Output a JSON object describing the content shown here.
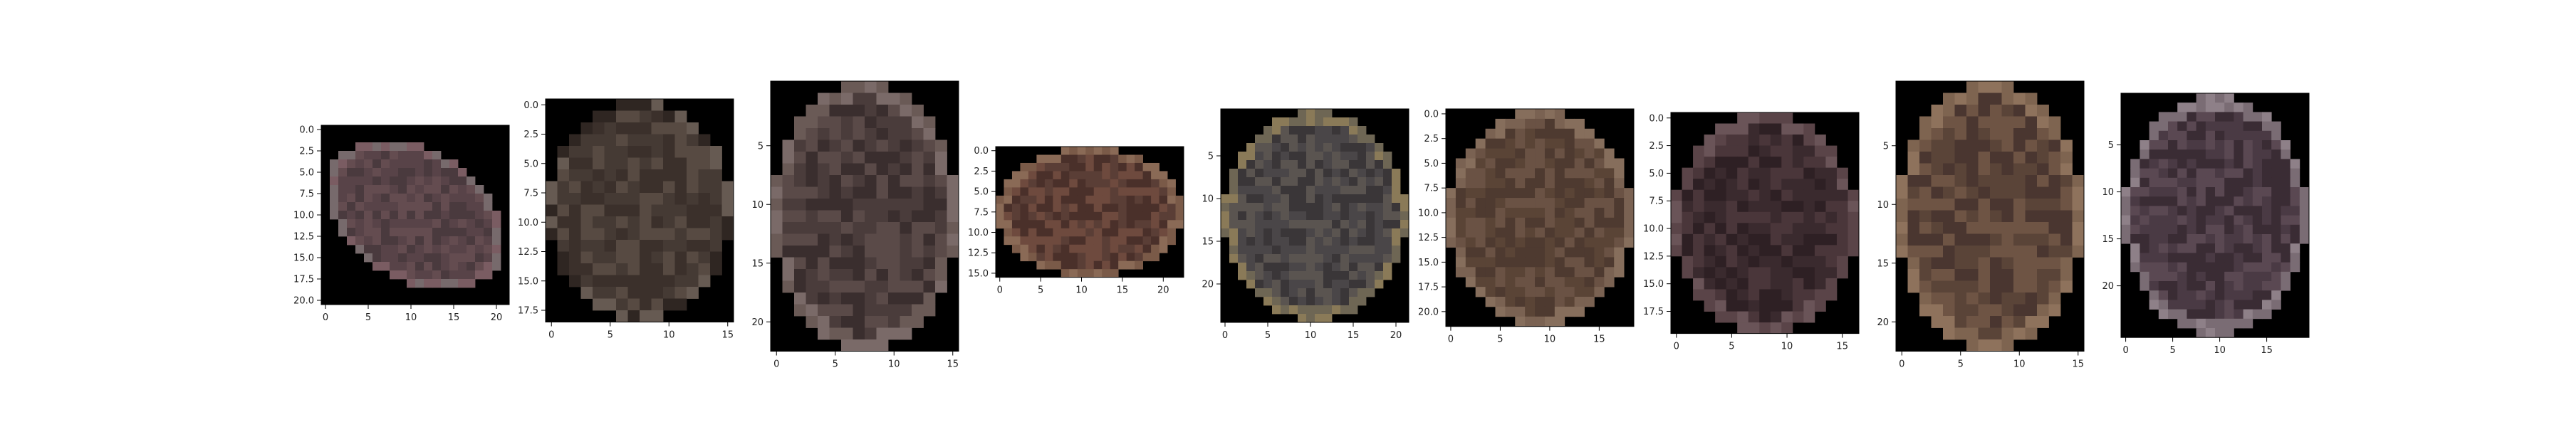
{
  "figure": {
    "background": "#ffffff",
    "axis_color": "#000000",
    "tick_label_color": "#222222",
    "pixel_background": "#000000"
  },
  "chart_data": [
    {
      "type": "heatmap",
      "title": "",
      "xlabel": "",
      "ylabel": "",
      "grid": false,
      "xlim": [
        -0.5,
        21.5
      ],
      "ylim": [
        20.5,
        -0.5
      ],
      "xticks": [
        0,
        5,
        10,
        15,
        20
      ],
      "yticks": [
        0.0,
        2.5,
        5.0,
        7.5,
        10.0,
        12.5,
        15.0,
        17.5,
        20.0
      ],
      "ytick_format": "fixed1",
      "colors": [
        "#584348",
        "#644c50",
        "#4a3a3e",
        "#776a6c",
        "#7a5c62"
      ],
      "shape": "tilted-oval"
    },
    {
      "type": "heatmap",
      "title": "",
      "xlabel": "",
      "ylabel": "",
      "grid": false,
      "xlim": [
        -0.5,
        15.5
      ],
      "ylim": [
        18.5,
        -0.5
      ],
      "xticks": [
        0,
        5,
        10,
        15
      ],
      "yticks": [
        0.0,
        2.5,
        5.0,
        7.5,
        10.0,
        12.5,
        15.0,
        17.5
      ],
      "ytick_format": "fixed1",
      "colors": [
        "#453a34",
        "#3b302b",
        "#574a42",
        "#2f2622",
        "#665a52"
      ],
      "shape": "oval"
    },
    {
      "type": "heatmap",
      "title": "",
      "xlabel": "",
      "ylabel": "",
      "grid": false,
      "xlim": [
        -0.5,
        15.5
      ],
      "ylim": [
        22.5,
        -0.5
      ],
      "xticks": [
        0,
        5,
        10,
        15
      ],
      "yticks": [
        5,
        10,
        15,
        20
      ],
      "ytick_format": "int",
      "colors": [
        "#4a3c3b",
        "#5a4a48",
        "#3a2e2e",
        "#6a5a56",
        "#7a6a68"
      ],
      "shape": "oval"
    },
    {
      "type": "heatmap",
      "title": "",
      "xlabel": "",
      "ylabel": "",
      "grid": false,
      "xlim": [
        -0.5,
        22.5
      ],
      "ylim": [
        15.5,
        -0.5
      ],
      "xticks": [
        0,
        5,
        10,
        15,
        20
      ],
      "yticks": [
        0.0,
        2.5,
        5.0,
        7.5,
        10.0,
        12.5,
        15.0
      ],
      "ytick_format": "fixed1",
      "colors": [
        "#5a3e36",
        "#6e4a3e",
        "#4a302a",
        "#7a5a48",
        "#8a6a56"
      ],
      "shape": "oval"
    },
    {
      "type": "heatmap",
      "title": "",
      "xlabel": "",
      "ylabel": "",
      "grid": false,
      "xlim": [
        -0.5,
        21.5
      ],
      "ylim": [
        24.5,
        -0.5
      ],
      "xticks": [
        0,
        5,
        10,
        15,
        20
      ],
      "yticks": [
        5,
        10,
        15,
        20
      ],
      "ytick_format": "int",
      "colors": [
        "#4a4648",
        "#3a3638",
        "#5a5450",
        "#6e6654",
        "#8a7a58"
      ],
      "shape": "oval"
    },
    {
      "type": "heatmap",
      "title": "",
      "xlabel": "",
      "ylabel": "",
      "grid": false,
      "xlim": [
        -0.5,
        18.5
      ],
      "ylim": [
        21.5,
        -0.5
      ],
      "xticks": [
        0,
        5,
        10,
        15
      ],
      "yticks": [
        0.0,
        2.5,
        5.0,
        7.5,
        10.0,
        12.5,
        15.0,
        17.5,
        20.0
      ],
      "ytick_format": "fixed1",
      "colors": [
        "#5a4436",
        "#6a5244",
        "#4e3a30",
        "#7a6252",
        "#866e5c"
      ],
      "shape": "oval"
    },
    {
      "type": "heatmap",
      "title": "",
      "xlabel": "",
      "ylabel": "",
      "grid": false,
      "xlim": [
        -0.5,
        16.5
      ],
      "ylim": [
        19.5,
        -0.5
      ],
      "xticks": [
        0,
        5,
        10,
        15
      ],
      "yticks": [
        0.0,
        2.5,
        5.0,
        7.5,
        10.0,
        12.5,
        15.0,
        17.5
      ],
      "ytick_format": "fixed1",
      "colors": [
        "#3a2a2e",
        "#4a363a",
        "#2e2024",
        "#5a4448",
        "#6a5458"
      ],
      "shape": "oval"
    },
    {
      "type": "heatmap",
      "title": "",
      "xlabel": "",
      "ylabel": "",
      "grid": false,
      "xlim": [
        -0.5,
        15.5
      ],
      "ylim": [
        22.5,
        -0.5
      ],
      "xticks": [
        0,
        5,
        10,
        15
      ],
      "yticks": [
        5,
        10,
        15,
        20
      ],
      "ytick_format": "int",
      "colors": [
        "#5a4438",
        "#6e5444",
        "#4a3630",
        "#7e6450",
        "#8e725c"
      ],
      "shape": "oval"
    },
    {
      "type": "heatmap",
      "title": "",
      "xlabel": "",
      "ylabel": "",
      "grid": false,
      "xlim": [
        -0.5,
        19.5
      ],
      "ylim": [
        25.5,
        -0.5
      ],
      "xticks": [
        0,
        5,
        10,
        15
      ],
      "yticks": [
        5,
        10,
        15,
        20
      ],
      "ytick_format": "int",
      "colors": [
        "#4a3a44",
        "#5a4852",
        "#3a2c34",
        "#7a6c74",
        "#8e8088"
      ],
      "shape": "oval"
    }
  ]
}
